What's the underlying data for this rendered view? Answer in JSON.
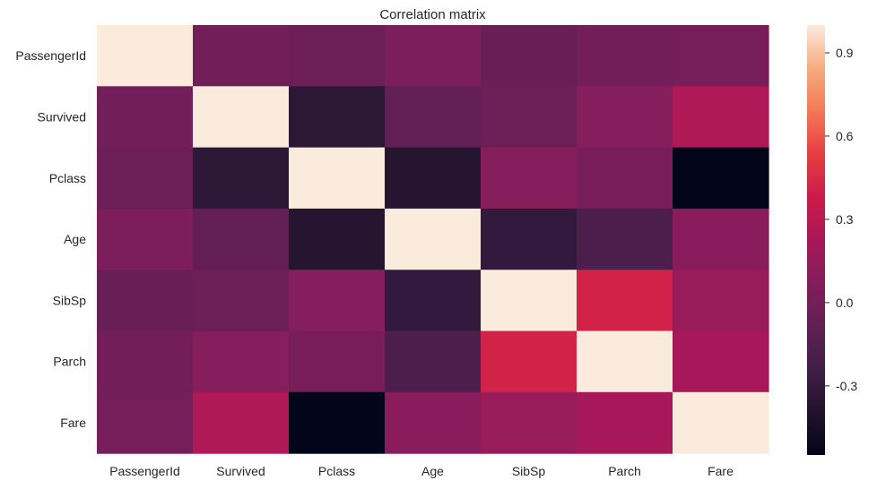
{
  "chart_data": {
    "type": "heatmap",
    "title": "Correlation matrix",
    "xlabel": "",
    "ylabel": "",
    "x_categories": [
      "PassengerId",
      "Survived",
      "Pclass",
      "Age",
      "SibSp",
      "Parch",
      "Fare"
    ],
    "y_categories": [
      "PassengerId",
      "Survived",
      "Pclass",
      "Age",
      "SibSp",
      "Parch",
      "Fare"
    ],
    "matrix": [
      [
        1.0,
        -0.005,
        -0.035,
        0.037,
        -0.058,
        -0.002,
        0.013
      ],
      [
        -0.005,
        1.0,
        -0.338,
        -0.077,
        -0.035,
        0.082,
        0.257
      ],
      [
        -0.035,
        -0.338,
        1.0,
        -0.369,
        0.083,
        0.018,
        -0.549
      ],
      [
        0.037,
        -0.077,
        -0.369,
        1.0,
        -0.308,
        -0.189,
        0.096
      ],
      [
        -0.058,
        -0.035,
        0.083,
        -0.308,
        1.0,
        0.415,
        0.16
      ],
      [
        -0.002,
        0.082,
        0.018,
        -0.189,
        0.415,
        1.0,
        0.216
      ],
      [
        0.013,
        0.257,
        -0.549,
        0.096,
        0.16,
        0.216,
        1.0
      ]
    ],
    "colormap": "rocket",
    "vmin": -0.549,
    "vmax": 1.0,
    "colorbar_ticks": [
      "-0.3",
      "0.0",
      "0.3",
      "0.6",
      "0.9"
    ],
    "colorbar_tick_values": [
      -0.3,
      0.0,
      0.3,
      0.6,
      0.9
    ],
    "legend_position": "right"
  }
}
